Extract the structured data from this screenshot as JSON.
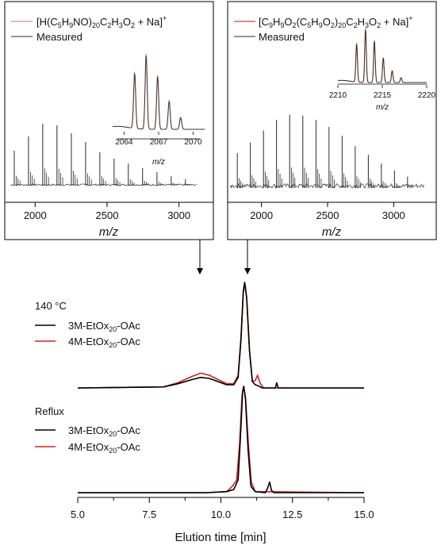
{
  "chart_data": [
    {
      "type": "line",
      "panel": "ms-left",
      "legend": [
        {
          "name_main": "[H(C",
          "sub1": "5",
          "mid1": "H",
          "sub2": "9",
          "mid2": "NO)",
          "sub3": "20",
          "mid3": "C",
          "sub4": "2",
          "mid4": "H",
          "sub5": "3",
          "mid5": "O",
          "sub6": "2",
          "tail": " + Na]",
          "sup": "+",
          "color": "#d98888"
        },
        {
          "name": "Measured",
          "color": "#555555"
        }
      ],
      "xlabel": "m/z",
      "xlim": [
        1800,
        3250
      ],
      "xticks": [
        "2000",
        "2500",
        "3000"
      ],
      "peaks": [
        {
          "x": 1855,
          "h": 0.44
        },
        {
          "x": 1954,
          "h": 0.62
        },
        {
          "x": 2053,
          "h": 0.78
        },
        {
          "x": 2152,
          "h": 0.76
        },
        {
          "x": 2252,
          "h": 0.66
        },
        {
          "x": 2351,
          "h": 0.55
        },
        {
          "x": 2450,
          "h": 0.42
        },
        {
          "x": 2549,
          "h": 0.34
        },
        {
          "x": 2648,
          "h": 0.28
        },
        {
          "x": 2747,
          "h": 0.22
        },
        {
          "x": 2847,
          "h": 0.17
        },
        {
          "x": 2946,
          "h": 0.12
        },
        {
          "x": 3045,
          "h": 0.08
        }
      ],
      "inset": {
        "xlim": [
          2063,
          2071
        ],
        "xticks": [
          "2064",
          "2067",
          "2070"
        ],
        "xlabel": "m/z",
        "peaks": [
          {
            "x": 2064.9,
            "h": 0.75
          },
          {
            "x": 2065.9,
            "h": 1.0
          },
          {
            "x": 2066.9,
            "h": 0.72
          },
          {
            "x": 2067.9,
            "h": 0.38
          },
          {
            "x": 2068.9,
            "h": 0.16
          }
        ]
      }
    },
    {
      "type": "line",
      "panel": "ms-right",
      "legend": [
        {
          "name_main": "[C",
          "sub1": "9",
          "mid1": "H",
          "sub2": "9",
          "mid2": "O",
          "sub3": "2",
          "mid3": "(C",
          "sub4": "5",
          "mid4": "H",
          "sub5": "9",
          "mid5": "O",
          "sub6": "2",
          "mid6": ")",
          "sub7": "20",
          "mid7": "C",
          "sub8": "2",
          "mid8": "H",
          "sub9": "3",
          "mid9": "O",
          "sub10": "2",
          "tail": " + Na]",
          "sup": "+",
          "color": "#c94a4a"
        },
        {
          "name": "Measured",
          "color": "#555555"
        }
      ],
      "xlabel": "m/z",
      "xlim": [
        1750,
        3250
      ],
      "xticks": [
        "2000",
        "2500",
        "3000"
      ],
      "peaks": [
        {
          "x": 1817,
          "h": 0.4
        },
        {
          "x": 1916,
          "h": 0.52
        },
        {
          "x": 2015,
          "h": 0.66
        },
        {
          "x": 2114,
          "h": 0.78
        },
        {
          "x": 2213,
          "h": 0.84
        },
        {
          "x": 2313,
          "h": 0.83
        },
        {
          "x": 2412,
          "h": 0.78
        },
        {
          "x": 2511,
          "h": 0.7
        },
        {
          "x": 2610,
          "h": 0.6
        },
        {
          "x": 2709,
          "h": 0.48
        },
        {
          "x": 2808,
          "h": 0.38
        },
        {
          "x": 2907,
          "h": 0.28
        },
        {
          "x": 3006,
          "h": 0.2
        },
        {
          "x": 3105,
          "h": 0.13
        }
      ],
      "inset": {
        "xlim": [
          2210,
          2220
        ],
        "xticks": [
          "2210",
          "2215",
          "2220"
        ],
        "xlabel": "m/z",
        "peaks": [
          {
            "x": 2212.1,
            "h": 0.72
          },
          {
            "x": 2213.1,
            "h": 1.0
          },
          {
            "x": 2214.1,
            "h": 0.78
          },
          {
            "x": 2215.1,
            "h": 0.46
          },
          {
            "x": 2216.1,
            "h": 0.22
          },
          {
            "x": 2217.1,
            "h": 0.09
          }
        ]
      }
    },
    {
      "type": "line",
      "panel": "sec",
      "xlabel": "Elution time [min]",
      "xlim": [
        5.0,
        15.0
      ],
      "xticks": [
        "5.0",
        "7.5",
        "10.0",
        "12.5",
        "15.0"
      ],
      "groups": [
        {
          "title": "140 °C",
          "series": [
            {
              "name_pre": "3M-EtOx",
              "name_sub": "20",
              "name_post": "-OAc",
              "color": "#000000",
              "points": [
                [
                  5.0,
                  0
                ],
                [
                  8.0,
                  0.01
                ],
                [
                  8.5,
                  0.04
                ],
                [
                  9.0,
                  0.08
                ],
                [
                  9.3,
                  0.1
                ],
                [
                  9.6,
                  0.09
                ],
                [
                  9.9,
                  0.06
                ],
                [
                  10.2,
                  0.03
                ],
                [
                  10.45,
                  0.03
                ],
                [
                  10.6,
                  0.1
                ],
                [
                  10.7,
                  0.45
                ],
                [
                  10.78,
                  0.9
                ],
                [
                  10.83,
                  1.0
                ],
                [
                  10.9,
                  0.85
                ],
                [
                  11.0,
                  0.35
                ],
                [
                  11.1,
                  0.06
                ],
                [
                  11.2,
                  0.03
                ],
                [
                  11.3,
                  0.02
                ],
                [
                  11.45,
                  0
                ],
                [
                  11.9,
                  0
                ],
                [
                  11.95,
                  0.05
                ],
                [
                  12.0,
                  0
                ],
                [
                  15.0,
                  0
                ]
              ]
            },
            {
              "name_pre": "4M-EtOx",
              "name_sub": "20",
              "name_post": "-OAc",
              "color": "#d42020",
              "points": [
                [
                  5.0,
                  0
                ],
                [
                  8.0,
                  0.01
                ],
                [
                  8.5,
                  0.05
                ],
                [
                  9.0,
                  0.11
                ],
                [
                  9.3,
                  0.14
                ],
                [
                  9.6,
                  0.12
                ],
                [
                  9.9,
                  0.08
                ],
                [
                  10.2,
                  0.04
                ],
                [
                  10.45,
                  0.04
                ],
                [
                  10.6,
                  0.12
                ],
                [
                  10.7,
                  0.48
                ],
                [
                  10.78,
                  0.92
                ],
                [
                  10.83,
                  1.0
                ],
                [
                  10.9,
                  0.86
                ],
                [
                  11.0,
                  0.35
                ],
                [
                  11.1,
                  0.06
                ],
                [
                  11.2,
                  0.07
                ],
                [
                  11.28,
                  0.12
                ],
                [
                  11.38,
                  0.04
                ],
                [
                  11.5,
                  0
                ],
                [
                  15.0,
                  0
                ]
              ]
            }
          ]
        },
        {
          "title": "Reflux",
          "series": [
            {
              "name_pre": "3M-EtOx",
              "name_sub": "20",
              "name_post": "-OAc",
              "color": "#000000",
              "points": [
                [
                  5.0,
                  0
                ],
                [
                  9.5,
                  0
                ],
                [
                  10.2,
                  0.01
                ],
                [
                  10.45,
                  0.03
                ],
                [
                  10.6,
                  0.12
                ],
                [
                  10.68,
                  0.5
                ],
                [
                  10.76,
                  0.95
                ],
                [
                  10.8,
                  1.0
                ],
                [
                  10.86,
                  0.88
                ],
                [
                  10.95,
                  0.4
                ],
                [
                  11.05,
                  0.06
                ],
                [
                  11.2,
                  0.01
                ],
                [
                  11.55,
                  0
                ],
                [
                  11.63,
                  0.04
                ],
                [
                  11.7,
                  0.1
                ],
                [
                  11.77,
                  0.02
                ],
                [
                  11.85,
                  0
                ],
                [
                  15.0,
                  0
                ]
              ]
            },
            {
              "name_pre": "4M-EtOx",
              "name_sub": "20",
              "name_post": "-OAc",
              "color": "#d42020",
              "points": [
                [
                  5.0,
                  0
                ],
                [
                  9.5,
                  0
                ],
                [
                  10.2,
                  0.01
                ],
                [
                  10.4,
                  0.06
                ],
                [
                  10.55,
                  0.12
                ],
                [
                  10.65,
                  0.45
                ],
                [
                  10.74,
                  0.92
                ],
                [
                  10.79,
                  1.0
                ],
                [
                  10.86,
                  0.9
                ],
                [
                  10.96,
                  0.45
                ],
                [
                  11.06,
                  0.1
                ],
                [
                  11.2,
                  0.01
                ],
                [
                  15.0,
                  0
                ]
              ]
            }
          ]
        }
      ]
    }
  ]
}
